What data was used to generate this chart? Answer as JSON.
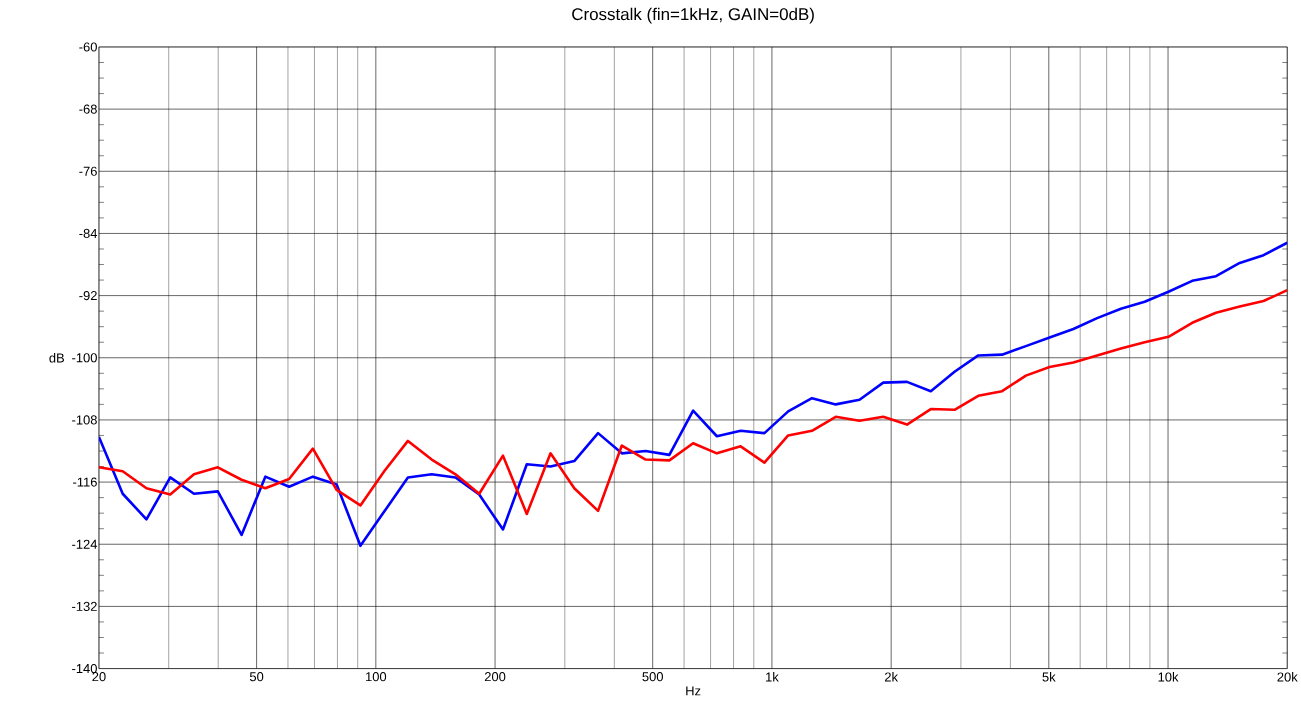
{
  "chart_data": {
    "type": "line",
    "title": "Crosstalk (fin=1kHz, GAIN=0dB)",
    "xlabel": "Hz",
    "ylabel": "dB",
    "log": "x",
    "grid": true,
    "xlim": [
      20,
      20000
    ],
    "ylim": [
      -140,
      -60
    ],
    "xticks": [
      20,
      50,
      100,
      200,
      500,
      {
        "value": 1000,
        "label": "1k"
      },
      {
        "value": 2000,
        "label": "2k"
      },
      {
        "value": 5000,
        "label": "5k"
      },
      {
        "value": 10000,
        "label": "10k"
      },
      {
        "value": 20000,
        "label": "20k"
      }
    ],
    "yticks": [
      -140,
      -132,
      -124,
      -116,
      -108,
      -100,
      -92,
      -84,
      -76,
      -68,
      -60
    ],
    "x": [
      20,
      22.96,
      26.36,
      30.27,
      34.75,
      39.91,
      45.82,
      52.61,
      60.41,
      69.36,
      79.62,
      91.43,
      105.0,
      120.5,
      138.4,
      158.9,
      182.4,
      209.4,
      240.5,
      276.1,
      317.0,
      364.0,
      417.9,
      479.8,
      550.9,
      632.5,
      726.2,
      833.8,
      957.4,
      1099,
      1262,
      1449,
      1664,
      1910,
      2193,
      2518,
      2891,
      3319,
      3811,
      4376,
      5024,
      5768,
      6623,
      7604,
      8731,
      10024,
      11510,
      13215,
      15173,
      17421,
      20000
    ],
    "series": [
      {
        "color": "#0000ff",
        "values": [
          -110.2,
          -117.5,
          -120.8,
          -115.4,
          -117.5,
          -117.2,
          -122.8,
          -115.3,
          -116.6,
          -115.3,
          -116.3,
          -124.2,
          -119.8,
          -115.4,
          -115.0,
          -115.4,
          -117.6,
          -122.1,
          -113.7,
          -114.0,
          -113.3,
          -109.7,
          -112.3,
          -112.0,
          -112.5,
          -106.8,
          -110.1,
          -109.4,
          -109.7,
          -106.9,
          -105.2,
          -106.0,
          -105.4,
          -103.2,
          -103.1,
          -104.3,
          -101.8,
          -99.7,
          -99.6,
          -98.5,
          -97.4,
          -96.3,
          -94.9,
          -93.7,
          -92.8,
          -91.5,
          -90.1,
          -89.5,
          -87.8,
          -86.8,
          -85.2
        ]
      },
      {
        "color": "#ff0000",
        "values": [
          -114.1,
          -114.6,
          -116.8,
          -117.6,
          -115.0,
          -114.1,
          -115.7,
          -116.8,
          -115.6,
          -111.7,
          -117.0,
          -119.0,
          -114.6,
          -110.7,
          -113.1,
          -115.0,
          -117.5,
          -112.6,
          -120.1,
          -112.3,
          -116.8,
          -119.7,
          -111.3,
          -113.1,
          -113.2,
          -111.0,
          -112.3,
          -111.4,
          -113.5,
          -110.0,
          -109.4,
          -107.6,
          -108.1,
          -107.6,
          -108.6,
          -106.6,
          -106.7,
          -104.9,
          -104.3,
          -102.3,
          -101.2,
          -100.6,
          -99.7,
          -98.8,
          -98.0,
          -97.3,
          -95.5,
          -94.2,
          -93.4,
          -92.7,
          -91.3
        ]
      }
    ]
  }
}
